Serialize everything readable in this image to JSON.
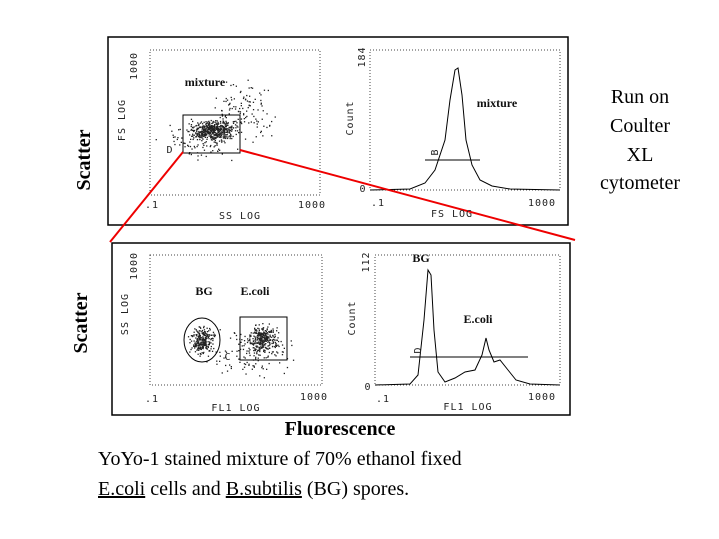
{
  "side_labels": {
    "top_scatter": "Scatter",
    "bottom_scatter": "Scatter",
    "fluorescence": "Fluorescence"
  },
  "note": [
    "Run on",
    "Coulter",
    "XL",
    "cytometer"
  ],
  "caption": {
    "line1": "YoYo-1 stained mixture of 70% ethanol fixed",
    "line2": [
      {
        "text": "E.coli",
        "underline": true
      },
      {
        "text": " cells and ",
        "underline": false
      },
      {
        "text": "B.subtilis",
        "underline": true
      },
      {
        "text": " (BG) spores.",
        "underline": false
      }
    ]
  },
  "panels": [
    {
      "y_axis": "FS LOG",
      "x_axis": "SS LOG",
      "y_max": "1000",
      "x_min": ".1",
      "x_max": "1000",
      "label": "mixture",
      "gate": "D"
    },
    {
      "y_axis": "Count",
      "x_axis": "FS LOG",
      "y_max": "184",
      "y_min": "0",
      "x_min": ".1",
      "x_max": "1000",
      "label": "mixture",
      "gate": "B"
    },
    {
      "y_axis": "SS LOG",
      "x_axis": "FL1 LOG",
      "y_max": "1000",
      "x_min": ".1",
      "x_max": "1000",
      "label_a": "BG",
      "label_b": "E.coli",
      "gate": "C"
    },
    {
      "y_axis": "Count",
      "x_axis": "FL1 LOG",
      "y_max": "112",
      "y_min": "0",
      "x_min": ".1",
      "x_max": "1000",
      "label_a": "BG",
      "label_b": "E.coli",
      "gate": "D"
    }
  ]
}
